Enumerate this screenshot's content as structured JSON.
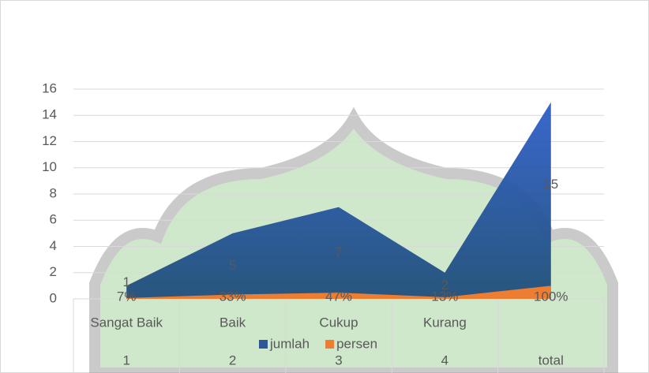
{
  "chart_data": {
    "type": "area",
    "categories": [
      "1",
      "2",
      "3",
      "4",
      "total"
    ],
    "category_groups": [
      "Sangat Baik",
      "Baik",
      "Cukup",
      "Kurang",
      null
    ],
    "series": [
      {
        "name": "jumlah",
        "color": "#2e5597",
        "values": [
          1,
          5,
          7,
          2,
          15
        ]
      },
      {
        "name": "persen",
        "color": "#ed7d31",
        "values": [
          0.07,
          0.33,
          0.47,
          0.13,
          1
        ],
        "value_labels": [
          "7%",
          "33%",
          "47%",
          "13%",
          "100%"
        ]
      }
    ],
    "ylim": [
      0,
      16
    ],
    "yticks": [
      0,
      2,
      4,
      6,
      8,
      10,
      12,
      14,
      16
    ],
    "grid": true,
    "legend": "bottom"
  }
}
